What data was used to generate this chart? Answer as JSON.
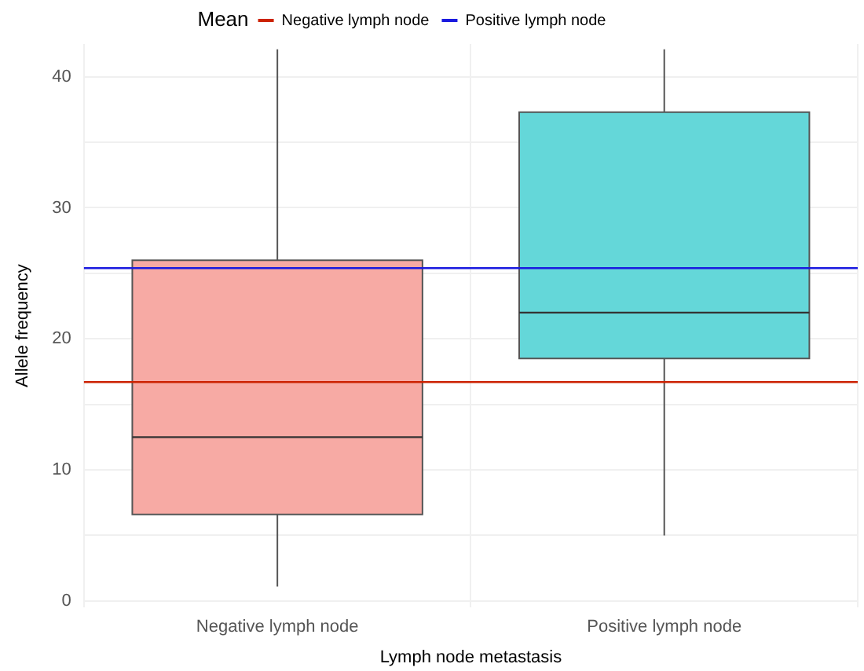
{
  "chart_data": {
    "type": "box",
    "xlabel": "Lymph node metastasis",
    "ylabel": "Allele frequency",
    "legend_title": "Mean",
    "legend": "top",
    "categories": [
      "Negative lymph node",
      "Positive lymph node"
    ],
    "colors": [
      "#f7aaa4",
      "#64d7d9"
    ],
    "boxes": [
      {
        "low": 1.1,
        "q1": 6.6,
        "median": 12.5,
        "q3": 26.0,
        "high": 42.1
      },
      {
        "low": 5.0,
        "q1": 18.5,
        "median": 22.0,
        "q3": 37.3,
        "high": 42.1
      }
    ],
    "ylim": [
      -0.5,
      42.5
    ],
    "yticks": [
      0,
      {
        "value": 5,
        "label": null
      },
      10,
      {
        "value": 15,
        "label": null
      },
      20,
      {
        "value": 25,
        "label": null
      },
      30,
      {
        "value": 35,
        "label": null
      },
      40
    ],
    "grid": true,
    "ref_lines": [
      {
        "axis": "y",
        "value": 16.7,
        "label": "Negative lymph node",
        "color": "#cc2200"
      },
      {
        "axis": "y",
        "value": 25.4,
        "label": "Positive lymph node",
        "color": "#1a1adf"
      }
    ]
  }
}
